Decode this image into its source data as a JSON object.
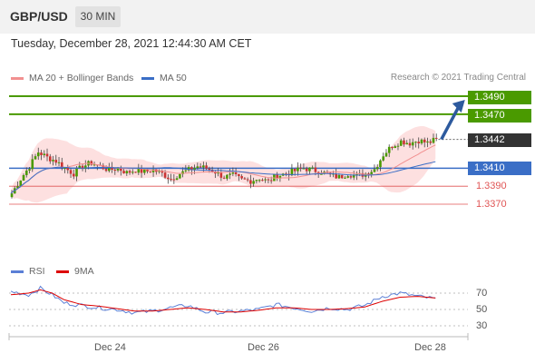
{
  "header": {
    "symbol": "GBP/USD",
    "timeframe": "30 MIN"
  },
  "datetime": "Tuesday, December 28, 2021 12:44:30 AM CET",
  "legend": {
    "ma20": "MA 20 + Bollinger Bands",
    "ma50": "MA 50",
    "credit": "Research © 2021 Trading Central"
  },
  "rsi_legend": {
    "rsi": "RSI",
    "ma9": "9MA"
  },
  "colors": {
    "resistance": "#4a9a00",
    "pivot": "#3a6ec6",
    "support": "#e05555",
    "ma20": "#f29090",
    "ma50": "#3a6ec6",
    "arrow": "#2d5a9e",
    "current": "#333333"
  },
  "chart_data": {
    "type": "candlestick",
    "x_ticks": [
      "Dec 24",
      "Dec 26",
      "Dec 28"
    ],
    "levels": {
      "resistance": [
        1.349,
        1.347
      ],
      "current": 1.3442,
      "pivot": 1.341,
      "support": [
        1.339,
        1.337
      ]
    },
    "level_labels": {
      "r2": "1.3490",
      "r1": "1.3470",
      "current": "1.3442",
      "pivot": "1.3410",
      "s1": "1.3390",
      "s2": "1.3370"
    },
    "close_path": [
      [
        0,
        1.3382
      ],
      [
        3,
        1.3398
      ],
      [
        6,
        1.3412
      ],
      [
        9,
        1.3428
      ],
      [
        12,
        1.3422
      ],
      [
        15,
        1.3418
      ],
      [
        18,
        1.341
      ],
      [
        21,
        1.3404
      ],
      [
        24,
        1.3412
      ],
      [
        27,
        1.3416
      ],
      [
        30,
        1.3412
      ],
      [
        33,
        1.3408
      ],
      [
        36,
        1.341
      ],
      [
        39,
        1.3405
      ],
      [
        42,
        1.3408
      ],
      [
        45,
        1.3406
      ],
      [
        48,
        1.3408
      ],
      [
        51,
        1.3404
      ],
      [
        54,
        1.3398
      ],
      [
        57,
        1.3404
      ],
      [
        60,
        1.3408
      ],
      [
        63,
        1.3412
      ],
      [
        66,
        1.341
      ],
      [
        69,
        1.3406
      ],
      [
        72,
        1.34
      ],
      [
        75,
        1.3402
      ],
      [
        78,
        1.3397
      ],
      [
        81,
        1.3396
      ],
      [
        84,
        1.3399
      ],
      [
        87,
        1.3395
      ],
      [
        90,
        1.3402
      ],
      [
        93,
        1.3404
      ],
      [
        96,
        1.3407
      ],
      [
        99,
        1.341
      ],
      [
        102,
        1.3408
      ],
      [
        105,
        1.3406
      ],
      [
        108,
        1.3402
      ],
      [
        111,
        1.34
      ],
      [
        114,
        1.3404
      ],
      [
        117,
        1.3401
      ],
      [
        120,
        1.3404
      ],
      [
        123,
        1.3409
      ],
      [
        126,
        1.3425
      ],
      [
        129,
        1.3435
      ],
      [
        132,
        1.344
      ],
      [
        135,
        1.3438
      ],
      [
        138,
        1.3441
      ],
      [
        141,
        1.3438
      ],
      [
        144,
        1.3442
      ]
    ],
    "forecast_arrow": {
      "from": [
        146,
        1.3442
      ],
      "to": [
        154,
        1.3486
      ]
    },
    "rsi": {
      "levels": [
        70,
        50,
        30
      ],
      "level_labels": [
        "70",
        "50",
        "30"
      ],
      "rsi_path": [
        [
          0,
          72
        ],
        [
          6,
          68
        ],
        [
          10,
          76
        ],
        [
          14,
          68
        ],
        [
          18,
          58
        ],
        [
          24,
          55
        ],
        [
          30,
          52
        ],
        [
          36,
          50
        ],
        [
          42,
          46
        ],
        [
          48,
          48
        ],
        [
          54,
          52
        ],
        [
          60,
          55
        ],
        [
          66,
          47
        ],
        [
          72,
          46
        ],
        [
          78,
          48
        ],
        [
          84,
          50
        ],
        [
          90,
          56
        ],
        [
          96,
          52
        ],
        [
          102,
          48
        ],
        [
          108,
          52
        ],
        [
          114,
          50
        ],
        [
          120,
          55
        ],
        [
          126,
          66
        ],
        [
          132,
          70
        ],
        [
          138,
          66
        ],
        [
          144,
          63
        ]
      ],
      "ma9_path": [
        [
          0,
          68
        ],
        [
          6,
          70
        ],
        [
          10,
          74
        ],
        [
          14,
          70
        ],
        [
          18,
          62
        ],
        [
          24,
          56
        ],
        [
          30,
          54
        ],
        [
          36,
          51
        ],
        [
          42,
          48
        ],
        [
          48,
          48
        ],
        [
          54,
          50
        ],
        [
          60,
          52
        ],
        [
          66,
          50
        ],
        [
          72,
          47
        ],
        [
          78,
          47
        ],
        [
          84,
          49
        ],
        [
          90,
          52
        ],
        [
          96,
          52
        ],
        [
          102,
          50
        ],
        [
          108,
          50
        ],
        [
          114,
          51
        ],
        [
          120,
          53
        ],
        [
          126,
          60
        ],
        [
          132,
          65
        ],
        [
          138,
          66
        ],
        [
          144,
          64
        ]
      ]
    }
  }
}
